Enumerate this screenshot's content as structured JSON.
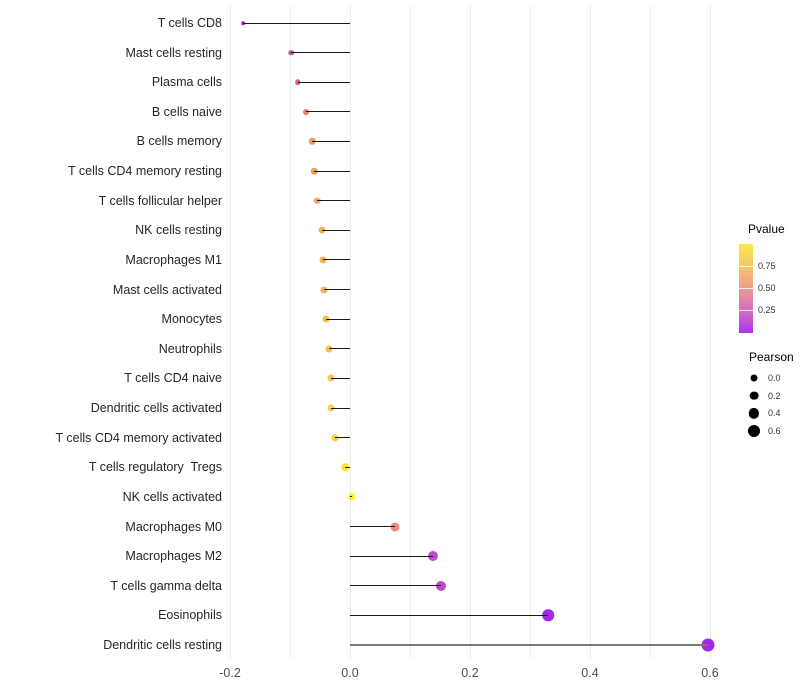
{
  "chart_data": {
    "type": "scatter",
    "subtype": "lollipop",
    "title": "",
    "xlabel": "",
    "ylabel": "",
    "grid": "vertical, light gray, every 0.1",
    "xlim": [
      -0.213,
      0.622
    ],
    "x_major_ticks": [
      -0.2,
      0.0,
      0.2,
      0.4,
      0.6
    ],
    "x_major_tick_labels": [
      "-0.2",
      "0.0",
      "0.2",
      "0.4",
      "0.6"
    ],
    "x_minor_ticks": [
      -0.1,
      0.1,
      0.3,
      0.5
    ],
    "points": [
      {
        "label": "T cells CD8",
        "pearson": -0.178,
        "size": 3.5,
        "color": "#9c2fe3",
        "stem_color": "#1a1a1a",
        "stem_width": 1
      },
      {
        "label": "Mast cells resting",
        "pearson": -0.098,
        "size": 5.5,
        "color": "#c2599b",
        "stem_color": "#1a1a1a",
        "stem_width": 1
      },
      {
        "label": "Plasma cells",
        "pearson": -0.087,
        "size": 5.5,
        "color": "#ce6984",
        "stem_color": "#1a1a1a",
        "stem_width": 1
      },
      {
        "label": "B cells naive",
        "pearson": -0.073,
        "size": 6.0,
        "color": "#dd8369",
        "stem_color": "#1a1a1a",
        "stem_width": 1
      },
      {
        "label": "B cells memory",
        "pearson": -0.063,
        "size": 6.5,
        "color": "#eb9c60",
        "stem_color": "#1a1a1a",
        "stem_width": 1
      },
      {
        "label": "T cells CD4 memory resting",
        "pearson": -0.06,
        "size": 6.5,
        "color": "#eda25c",
        "stem_color": "#1a1a1a",
        "stem_width": 1
      },
      {
        "label": "T cells follicular helper",
        "pearson": -0.055,
        "size": 6.5,
        "color": "#efa95a",
        "stem_color": "#1a1a1a",
        "stem_width": 1
      },
      {
        "label": "NK cells resting",
        "pearson": -0.047,
        "size": 7.0,
        "color": "#f1b055",
        "stem_color": "#1a1a1a",
        "stem_width": 1
      },
      {
        "label": "Macrophages M1",
        "pearson": -0.045,
        "size": 7.0,
        "color": "#f2b452",
        "stem_color": "#1a1a1a",
        "stem_width": 1
      },
      {
        "label": "Mast cells activated",
        "pearson": -0.043,
        "size": 7.0,
        "color": "#f2b750",
        "stem_color": "#1a1a1a",
        "stem_width": 1
      },
      {
        "label": "Monocytes",
        "pearson": -0.04,
        "size": 7.0,
        "color": "#f3bb4d",
        "stem_color": "#1a1a1a",
        "stem_width": 1
      },
      {
        "label": "Neutrophils",
        "pearson": -0.035,
        "size": 7.0,
        "color": "#f4c149",
        "stem_color": "#1a1a1a",
        "stem_width": 1
      },
      {
        "label": "T cells CD4 naive",
        "pearson": -0.032,
        "size": 7.0,
        "color": "#f6c845",
        "stem_color": "#1a1a1a",
        "stem_width": 1
      },
      {
        "label": "Dendritic cells activated",
        "pearson": -0.031,
        "size": 7.0,
        "color": "#f7cc41",
        "stem_color": "#1a1a1a",
        "stem_width": 1
      },
      {
        "label": "T cells CD4 memory activated",
        "pearson": -0.025,
        "size": 7.0,
        "color": "#f8d13c",
        "stem_color": "#1a1a1a",
        "stem_width": 1
      },
      {
        "label": "T cells regulatory  Tregs",
        "pearson": -0.008,
        "size": 7.5,
        "color": "#fbe42a",
        "stem_color": "#1a1a1a",
        "stem_width": 1
      },
      {
        "label": "NK cells activated",
        "pearson": 0.003,
        "size": 7.5,
        "color": "#fcee21",
        "stem_color": "#1a1a1a",
        "stem_width": 1
      },
      {
        "label": "Macrophages M0",
        "pearson": 0.075,
        "size": 9.0,
        "color": "#e98c7b",
        "stem_color": "#1a1a1a",
        "stem_width": 1
      },
      {
        "label": "Macrophages M2",
        "pearson": 0.138,
        "size": 10.0,
        "color": "#bb4bcd",
        "stem_color": "#1a1a1a",
        "stem_width": 1
      },
      {
        "label": "T cells gamma delta",
        "pearson": 0.152,
        "size": 10.0,
        "color": "#bc45d3",
        "stem_color": "#1a1a1a",
        "stem_width": 1
      },
      {
        "label": "Eosinophils",
        "pearson": 0.33,
        "size": 11.5,
        "color": "#a02be8",
        "stem_color": "#1a1a1a",
        "stem_width": 1
      },
      {
        "label": "Dendritic cells resting",
        "pearson": 0.597,
        "size": 13.0,
        "color": "#a526ea",
        "stem_color": "#7a7a7a",
        "stem_width": 2
      }
    ],
    "legend_pvalue": {
      "title": "Pvalue",
      "tick_labels": [
        "0.75",
        "0.50",
        "0.25"
      ],
      "range": [
        0,
        1
      ],
      "gradient_top_to_bottom": [
        "#f9e850",
        "#f5c666",
        "#ea9c92",
        "#d36ec1",
        "#ae32f2"
      ]
    },
    "legend_pearson": {
      "title": "Pearson",
      "entries": [
        {
          "label": "0.0",
          "size": 7.0
        },
        {
          "label": "0.2",
          "size": 8.7
        },
        {
          "label": "0.4",
          "size": 10.3
        },
        {
          "label": "0.6",
          "size": 12.0
        }
      ],
      "dot_color": "#000000"
    },
    "colors": {
      "background": "#ffffff",
      "gridline": "#ebebeb",
      "axis_text": "#4d4d4d",
      "y_label_text": "#262626"
    }
  }
}
